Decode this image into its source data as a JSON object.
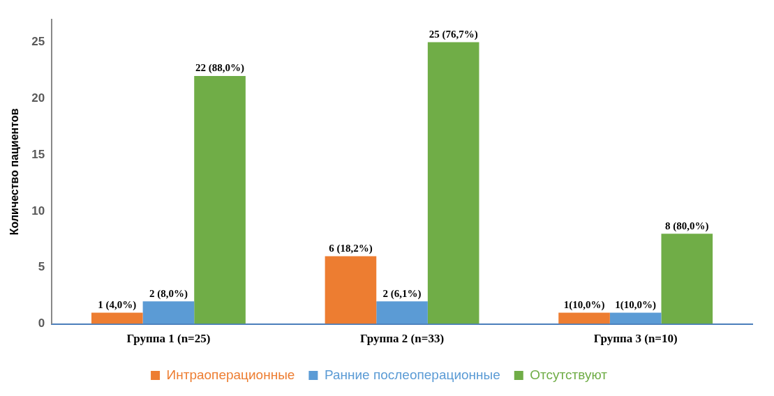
{
  "chart_data": {
    "type": "bar",
    "ylabel": "Количество пациентов",
    "categories": [
      "Группа 1 (n=25)",
      "Группа 2 (n=33)",
      "Группа 3 (n=10)"
    ],
    "series": [
      {
        "name": "Интраоперационные",
        "color": "#ed7d31",
        "values": [
          1,
          6,
          1
        ],
        "value_labels": [
          "1 (4,0%)",
          "6 (18,2%)",
          "1(10,0%)"
        ]
      },
      {
        "name": "Ранние послеоперационные",
        "color": "#5b9bd5",
        "values": [
          2,
          2,
          1
        ],
        "value_labels": [
          "2 (8,0%)",
          "2 (6,1%)",
          "1(10,0%)"
        ]
      },
      {
        "name": "Отсутствуют",
        "color": "#70ad47",
        "values": [
          22,
          25,
          8
        ],
        "value_labels": [
          "22 (88,0%)",
          "25 (76,7%)",
          "8 (80,0%)"
        ]
      }
    ],
    "ylim": [
      0,
      27
    ],
    "yticks": [
      0,
      5,
      10,
      15,
      20,
      25
    ],
    "grid": false,
    "legend": "bottom"
  }
}
